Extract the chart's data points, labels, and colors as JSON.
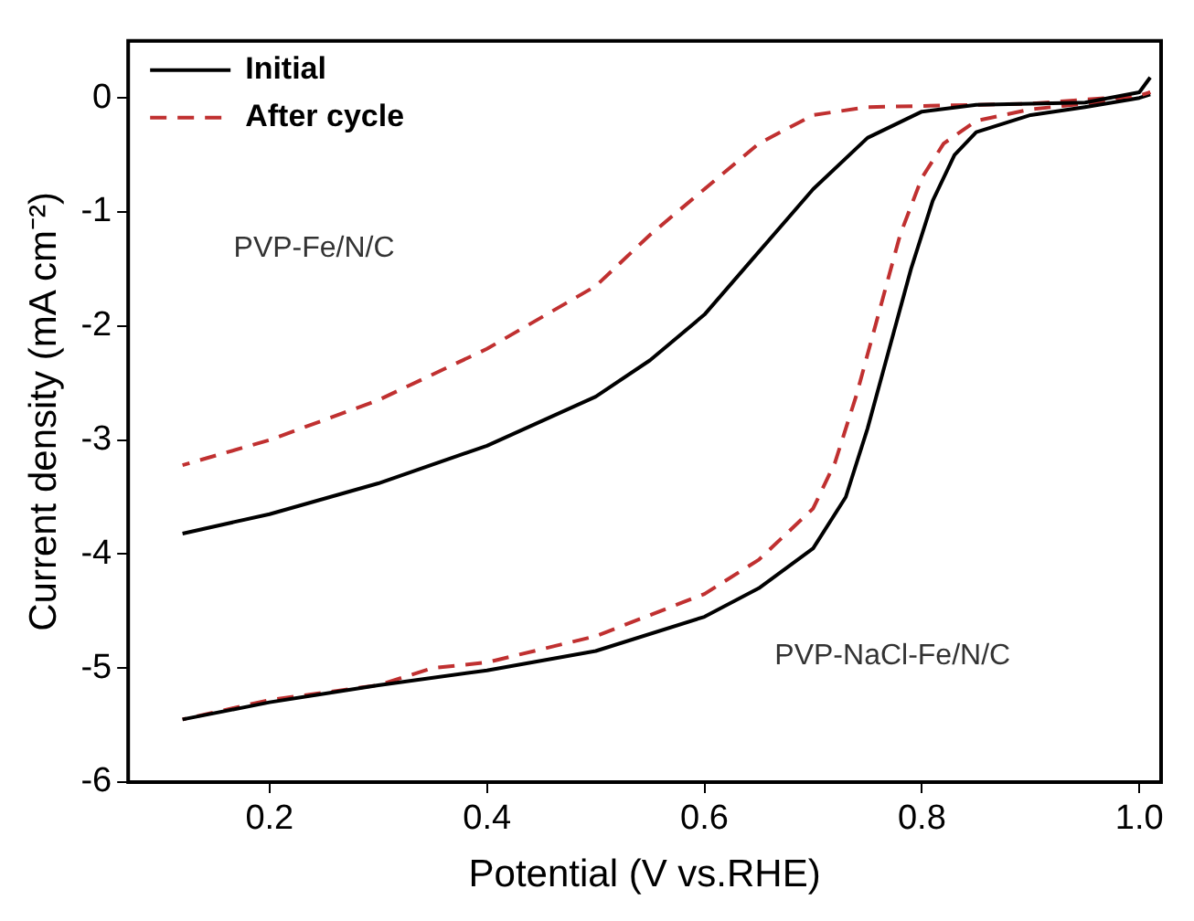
{
  "chart_data": {
    "type": "line",
    "xlabel": "Potential (V vs.RHE)",
    "ylabel": "Current density (mA cm⁻²)",
    "xlim": [
      0.07,
      1.02
    ],
    "xticks": [
      0.2,
      0.4,
      0.6,
      0.8,
      {
        "value": 1,
        "label": "1.0"
      }
    ],
    "ylim": [
      -6,
      0.5
    ],
    "yticks": [
      -6,
      -5,
      -4,
      -3,
      -2,
      -1,
      0
    ],
    "grid": false,
    "legend": "top left",
    "marker": "none",
    "series": [
      {
        "name": "Initial",
        "color": "#000000",
        "line_style": "solid",
        "x": [
          0.12,
          0.2,
          0.3,
          0.4,
          0.5,
          0.55,
          0.6,
          0.65,
          0.7,
          0.75,
          0.8,
          0.85,
          0.9,
          0.95,
          1.0,
          1.01
        ],
        "values": [
          -3.82,
          -3.65,
          -3.38,
          -3.05,
          -2.62,
          -2.3,
          -1.9,
          -1.35,
          -0.8,
          -0.35,
          -0.12,
          -0.06,
          -0.05,
          -0.04,
          0.05,
          0.18
        ]
      },
      {
        "name": "After cycle",
        "color": "#c03030",
        "line_style": "dashed",
        "x": [
          0.12,
          0.2,
          0.3,
          0.4,
          0.5,
          0.55,
          0.6,
          0.65,
          0.7,
          0.75,
          0.8,
          0.9,
          1.0,
          1.01
        ],
        "values": [
          -3.22,
          -3.0,
          -2.65,
          -2.2,
          -1.65,
          -1.2,
          -0.8,
          -0.4,
          -0.15,
          -0.08,
          -0.07,
          -0.05,
          0.02,
          0.05
        ]
      },
      {
        "color": "#000000",
        "line_style": "solid",
        "x": [
          0.12,
          0.2,
          0.3,
          0.4,
          0.5,
          0.6,
          0.65,
          0.7,
          0.73,
          0.75,
          0.77,
          0.79,
          0.81,
          0.83,
          0.85,
          0.9,
          0.95,
          1.0,
          1.01
        ],
        "values": [
          -5.45,
          -5.3,
          -5.15,
          -5.02,
          -4.85,
          -4.55,
          -4.3,
          -3.95,
          -3.5,
          -2.9,
          -2.2,
          -1.5,
          -0.9,
          -0.5,
          -0.3,
          -0.15,
          -0.08,
          0.0,
          0.03
        ]
      },
      {
        "color": "#c03030",
        "line_style": "dashed",
        "x": [
          0.12,
          0.2,
          0.3,
          0.35,
          0.4,
          0.5,
          0.6,
          0.65,
          0.7,
          0.72,
          0.74,
          0.76,
          0.78,
          0.8,
          0.82,
          0.85,
          0.9,
          1.0,
          1.01
        ],
        "values": [
          -5.45,
          -5.28,
          -5.15,
          -5.0,
          -4.95,
          -4.72,
          -4.35,
          -4.05,
          -3.6,
          -3.2,
          -2.6,
          -1.9,
          -1.2,
          -0.7,
          -0.4,
          -0.2,
          -0.1,
          0.0,
          0.05
        ]
      }
    ],
    "annotations": [
      "PVP-Fe/N/C",
      "PVP-NaCl-Fe/N/C"
    ]
  }
}
